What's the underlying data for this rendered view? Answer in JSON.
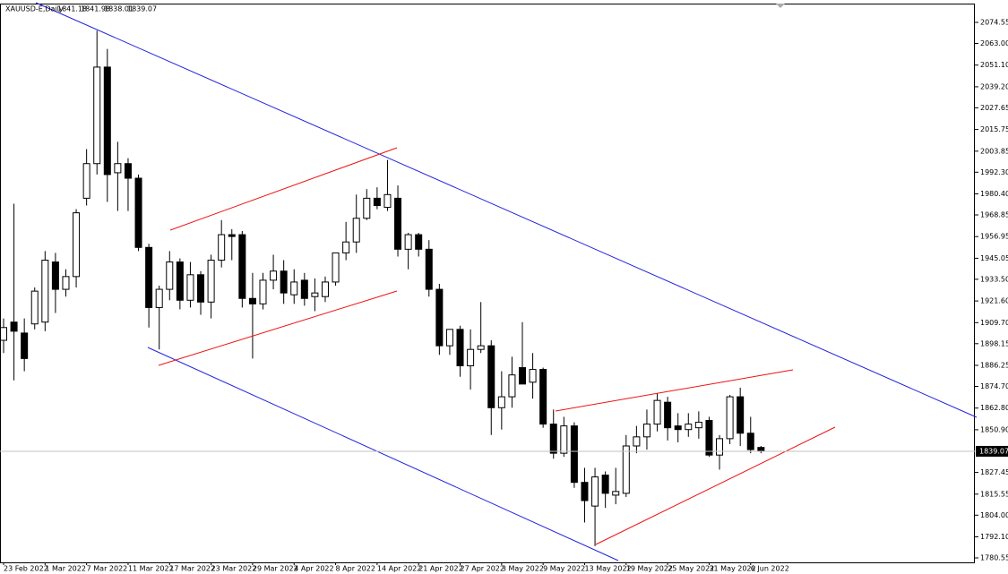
{
  "chart_data": {
    "type": "candlestick",
    "title": "XAUUSD-E,Daily",
    "categories": [
      "23 Feb 2022",
      null,
      null,
      null,
      "1 Mar 2022",
      null,
      null,
      null,
      "7 Mar 2022",
      null,
      null,
      null,
      "11 Mar 2022",
      null,
      null,
      null,
      "17 Mar 2022",
      null,
      null,
      null,
      "23 Mar 2022",
      null,
      null,
      null,
      "29 Mar 2022",
      null,
      null,
      null,
      "4 Apr 2022",
      null,
      null,
      null,
      "8 Apr 2022",
      null,
      null,
      null,
      "14 Apr 2022",
      null,
      null,
      null,
      "21 Apr 2022",
      null,
      null,
      null,
      "27 Apr 2022",
      null,
      null,
      null,
      "3 May 2022",
      null,
      null,
      null,
      "9 May 2022",
      null,
      null,
      null,
      "13 May 2022",
      null,
      null,
      null,
      "19 May 2022",
      null,
      null,
      null,
      "25 May 2022",
      null,
      null,
      null,
      "31 May 2022",
      null,
      null,
      null,
      "6 Jun 2022",
      null
    ],
    "open": [
      1900,
      1910,
      1904,
      1909,
      1910,
      1943,
      1928,
      1935,
      1978,
      1997,
      2050,
      1992,
      1997,
      1989,
      1951,
      1918,
      1928,
      1943,
      1922,
      1936,
      1921,
      1944,
      1958,
      1958,
      1923,
      1920,
      1933,
      1938,
      1925,
      1933,
      1924,
      1924,
      1932,
      1948,
      1954,
      1967,
      1978,
      1973,
      1978,
      1950,
      1958,
      1950,
      1928,
      1897,
      1906,
      1886,
      1895,
      1897,
      1863,
      1869,
      1885,
      1877,
      1884,
      1854,
      1838,
      1853,
      1822,
      1809,
      1826,
      1815,
      1816,
      1842,
      1847,
      1854,
      1866,
      1853,
      1851,
      1852,
      1856,
      1837,
      1846,
      1869,
      1849,
      1841.18
    ],
    "high": [
      1912,
      1975,
      1912,
      1929,
      1949,
      1948,
      1939,
      1972,
      2005,
      2070,
      2060,
      2009,
      2000,
      1991,
      1953,
      1930,
      1949,
      1945,
      1943,
      1938,
      1947,
      1966,
      1961,
      1960,
      1937,
      1937,
      1947,
      1944,
      1939,
      1937,
      1934,
      1935,
      1948,
      1965,
      1980,
      1983,
      1984,
      1999,
      1985,
      1959,
      1959,
      1955,
      1931,
      1906,
      1908,
      1906,
      1921,
      1900,
      1883,
      1891,
      1910,
      1893,
      1885,
      1862,
      1858,
      1855,
      1830,
      1830,
      1828,
      1830,
      1848,
      1853,
      1862,
      1871,
      1869,
      1860,
      1860,
      1861,
      1858,
      1848,
      1870,
      1874,
      1858,
      1841.98
    ],
    "low": [
      1893,
      1878,
      1883,
      1906,
      1905,
      1915,
      1924,
      1929,
      1974,
      1991,
      1976,
      1971,
      1971,
      1949,
      1907,
      1895,
      1922,
      1917,
      1918,
      1914,
      1912,
      1940,
      1944,
      1918,
      1890,
      1917,
      1928,
      1920,
      1920,
      1919,
      1916,
      1921,
      1930,
      1944,
      1948,
      1966,
      1972,
      1971,
      1946,
      1939,
      1946,
      1924,
      1892,
      1892,
      1880,
      1873,
      1893,
      1848,
      1851,
      1863,
      1876,
      1868,
      1852,
      1835,
      1836,
      1819,
      1800,
      1787,
      1808,
      1810,
      1814,
      1838,
      1840,
      1850,
      1845,
      1844,
      1847,
      1846,
      1836,
      1829,
      1843,
      1842,
      1838,
      1838.01
    ],
    "close": [
      1907,
      1905,
      1890,
      1927,
      1944,
      1928,
      1935,
      1970,
      1997,
      2050,
      1991,
      1997,
      1989,
      1951,
      1918,
      1928,
      1943,
      1922,
      1936,
      1921,
      1944,
      1958,
      1957,
      1923,
      1920,
      1933,
      1938,
      1926,
      1932,
      1923,
      1926,
      1932,
      1948,
      1954,
      1967,
      1978,
      1974,
      1980,
      1950,
      1958,
      1950,
      1928,
      1897,
      1906,
      1886,
      1895,
      1897,
      1863,
      1869,
      1881,
      1876,
      1884,
      1854,
      1838,
      1853,
      1822,
      1812,
      1825,
      1816,
      1817,
      1842,
      1847,
      1854,
      1867,
      1852,
      1851,
      1854,
      1855,
      1837,
      1846,
      1869,
      1849,
      1840,
      1839.07
    ],
    "up_color": "#ffffff",
    "down_color": "#000000",
    "ylim": [
      1778.09,
      2084.38
    ],
    "yticks": [
      2074.55,
      {
        "value": 2063,
        "label": "2063.00"
      },
      {
        "value": 2051.1,
        "label": "2051.10"
      },
      {
        "value": 2039.2,
        "label": "2039.20"
      },
      2027.65,
      2015.75,
      2003.85,
      {
        "value": 1992.3,
        "label": "1992.30"
      },
      {
        "value": 1980.4,
        "label": "1980.40"
      },
      1968.85,
      1956.95,
      1945.05,
      {
        "value": 1933.5,
        "label": "1933.50"
      },
      {
        "value": 1921.6,
        "label": "1921.60"
      },
      {
        "value": 1909.7,
        "label": "1909.70"
      },
      1898.15,
      1886.25,
      {
        "value": 1874.7,
        "label": "1874.70"
      },
      {
        "value": 1862.8,
        "label": "1862.80"
      },
      {
        "value": 1850.9,
        "label": "1850.90"
      },
      1827.45,
      1815.55,
      {
        "value": 1804,
        "label": "1804.00"
      },
      {
        "value": 1792.1,
        "label": "1792.10"
      },
      1780.55
    ]
  }
}
